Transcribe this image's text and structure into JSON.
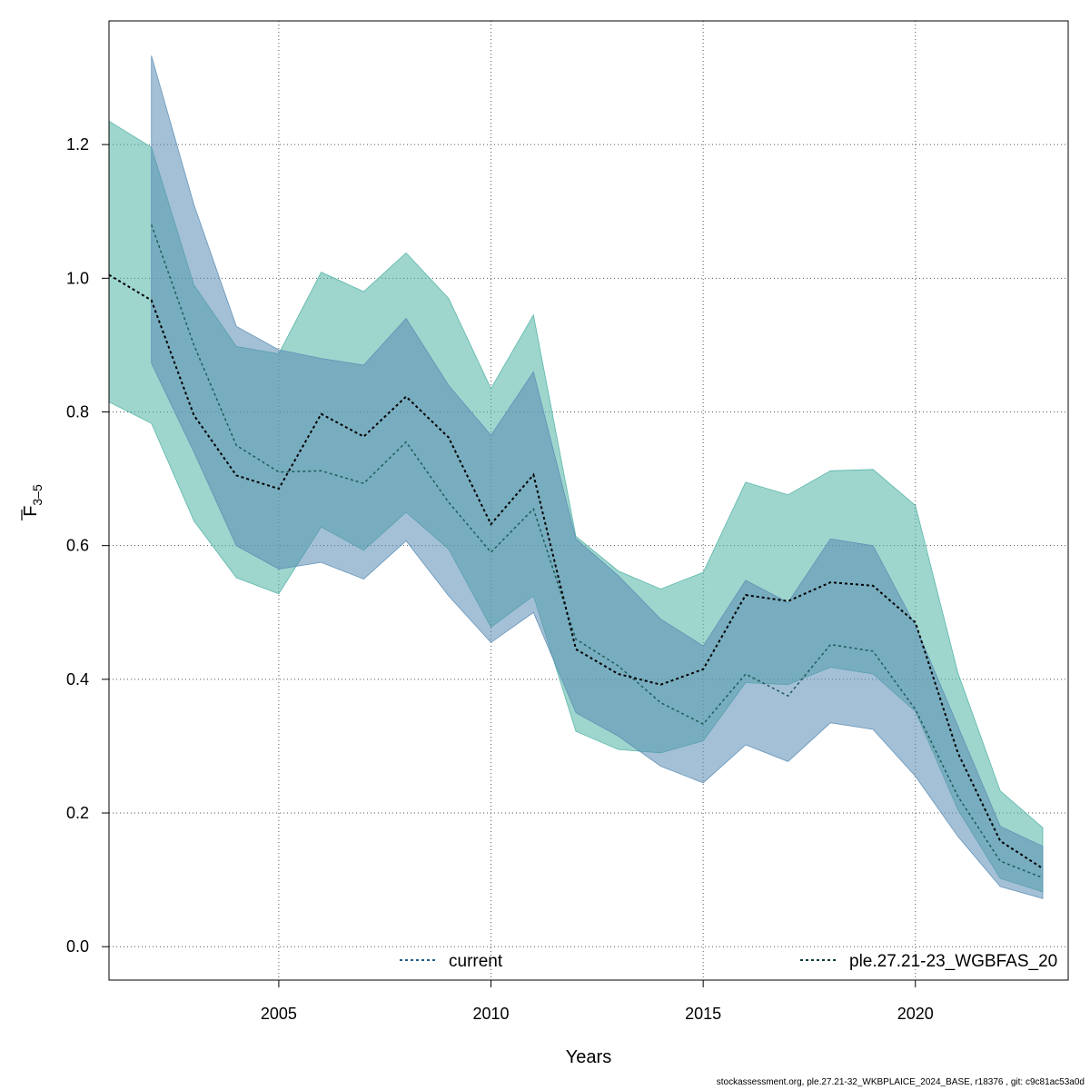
{
  "chart_data": {
    "type": "area",
    "xlabel": "Years",
    "ylabel_main": "F",
    "ylabel_sub": "3–5",
    "xlim": [
      2001,
      2023.6
    ],
    "ylim": [
      -0.05,
      1.385
    ],
    "xticks": [
      2005,
      2010,
      2015,
      2020
    ],
    "yticks": [
      0.0,
      0.2,
      0.4,
      0.6,
      0.8,
      1.0,
      1.2
    ],
    "ytick_labels": [
      "0.0",
      "0.2",
      "0.4",
      "0.6",
      "0.8",
      "1.0",
      "1.2"
    ],
    "grid": true,
    "legend_placement": "bottom",
    "series": [
      {
        "name": "current",
        "color": "#1f5f8b",
        "band_color": "#5a8db4",
        "x": [
          2002,
          2003,
          2004,
          2005,
          2006,
          2007,
          2008,
          2009,
          2010,
          2011,
          2012,
          2013,
          2014,
          2015,
          2016,
          2017,
          2018,
          2019,
          2020,
          2021,
          2022,
          2023
        ],
        "y": [
          1.08,
          0.9,
          0.75,
          0.71,
          0.712,
          0.693,
          0.755,
          0.665,
          0.59,
          0.655,
          0.46,
          0.42,
          0.365,
          0.333,
          0.408,
          0.375,
          0.452,
          0.442,
          0.355,
          0.225,
          0.128,
          0.103
        ],
        "lower": [
          0.873,
          0.74,
          0.6,
          0.565,
          0.575,
          0.55,
          0.607,
          0.525,
          0.455,
          0.5,
          0.35,
          0.315,
          0.27,
          0.245,
          0.302,
          0.277,
          0.335,
          0.325,
          0.255,
          0.165,
          0.09,
          0.072
        ],
        "upper": [
          1.333,
          1.11,
          0.928,
          0.893,
          0.88,
          0.87,
          0.94,
          0.84,
          0.765,
          0.86,
          0.61,
          0.555,
          0.49,
          0.45,
          0.548,
          0.515,
          0.61,
          0.6,
          0.48,
          0.33,
          0.18,
          0.15
        ]
      },
      {
        "name": "ple.27.21-23_WGBFAS_20",
        "color": "#0a3d3b",
        "band_color": "#4fb3a4",
        "x": [
          2001,
          2002,
          2003,
          2004,
          2005,
          2006,
          2007,
          2008,
          2009,
          2010,
          2011,
          2012,
          2013,
          2014,
          2015,
          2016,
          2017,
          2018,
          2019,
          2020,
          2021,
          2022,
          2023
        ],
        "y": [
          1.005,
          0.967,
          0.795,
          0.705,
          0.685,
          0.797,
          0.763,
          0.823,
          0.762,
          0.632,
          0.706,
          0.445,
          0.408,
          0.392,
          0.415,
          0.526,
          0.517,
          0.545,
          0.54,
          0.485,
          0.29,
          0.158,
          0.117
        ],
        "lower": [
          0.815,
          0.783,
          0.637,
          0.552,
          0.528,
          0.628,
          0.593,
          0.65,
          0.595,
          0.478,
          0.525,
          0.322,
          0.295,
          0.29,
          0.308,
          0.395,
          0.392,
          0.418,
          0.408,
          0.352,
          0.205,
          0.102,
          0.082
        ],
        "upper": [
          1.235,
          1.196,
          0.99,
          0.898,
          0.887,
          1.009,
          0.98,
          1.038,
          0.97,
          0.835,
          0.945,
          0.614,
          0.562,
          0.535,
          0.56,
          0.695,
          0.676,
          0.712,
          0.714,
          0.66,
          0.41,
          0.233,
          0.178
        ]
      }
    ]
  },
  "footer_text": "stockassessment.org, ple.27.21-32_WKBPLAICE_2024_BASE, r18376 , git: c9c81ac53a0d"
}
